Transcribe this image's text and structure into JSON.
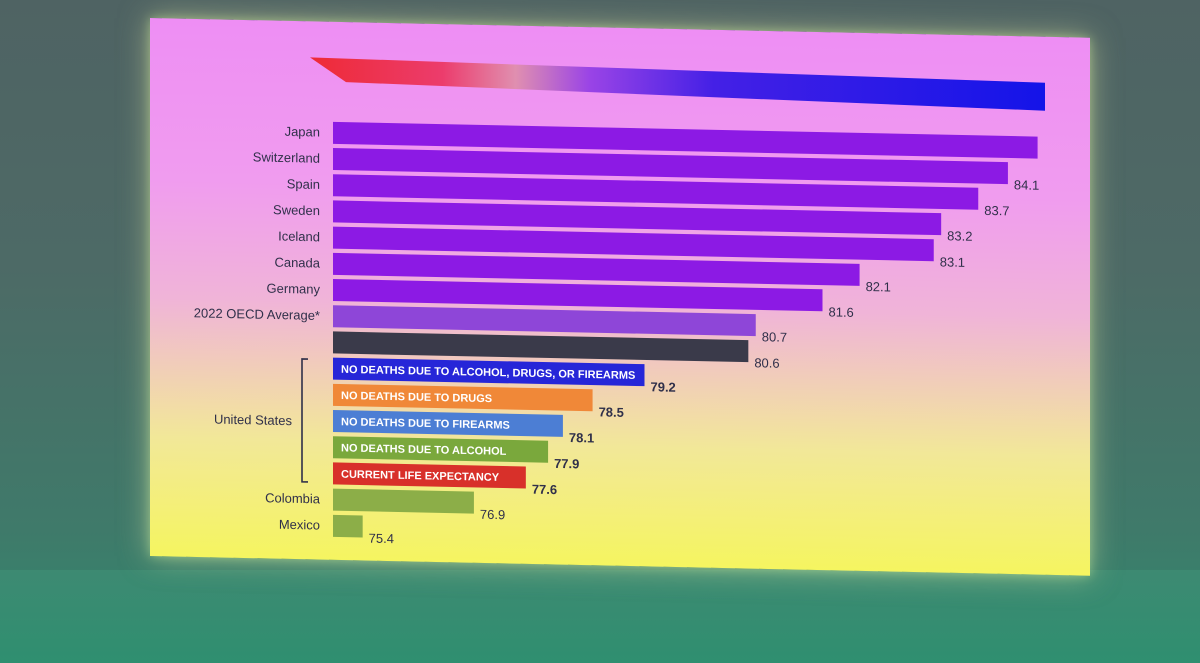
{
  "chart_data": {
    "type": "bar",
    "orientation": "horizontal",
    "categories": [
      "Japan",
      "Switzerland",
      "Spain",
      "Sweden",
      "Iceland",
      "Canada",
      "Germany",
      "2022 OECD Average*",
      "",
      "",
      "",
      "",
      "",
      "",
      "Colombia",
      "Mexico"
    ],
    "values": [
      84.5,
      84.1,
      83.7,
      83.2,
      83.1,
      82.1,
      81.6,
      80.7,
      80.6,
      79.2,
      78.5,
      78.1,
      77.9,
      77.6,
      76.9,
      75.4
    ],
    "value_labels": [
      "",
      "84.1",
      "83.7",
      "83.2",
      "83.1",
      "82.1",
      "81.6",
      "80.7",
      "80.6",
      "79.2",
      "78.5",
      "78.1",
      "77.9",
      "77.6",
      "76.9",
      "75.4"
    ],
    "bar_labels": [
      "",
      "",
      "",
      "",
      "",
      "",
      "",
      "",
      "",
      "NO DEATHS DUE TO ALCOHOL, DRUGS, OR FIREARMS",
      "NO DEATHS DUE TO DRUGS",
      "NO DEATHS DUE TO FIREARMS",
      "NO DEATHS DUE TO ALCOHOL",
      "CURRENT LIFE EXPECTANCY",
      "",
      ""
    ],
    "colors": [
      "#8c1ae4",
      "#8c1ae4",
      "#8c1ae4",
      "#8c1ae4",
      "#8c1ae4",
      "#8c1ae4",
      "#8c1ae4",
      "#8e46d8",
      "#3a3a4a",
      "#2626d8",
      "#f08838",
      "#4c7ed4",
      "#7aa83c",
      "#d8302a",
      "#8cae48",
      "#8cae48"
    ],
    "value_label_colors": [
      "#30304a",
      "#30304a",
      "#30304a",
      "#30304a",
      "#30304a",
      "#30304a",
      "#30304a",
      "#30304a",
      "#30304a",
      "#24248a",
      "#d87420",
      "#3a5fa8",
      "#5a7e28",
      "#c82a22",
      "#30304a",
      "#30304a"
    ],
    "bold_value_labels": [
      false,
      false,
      false,
      false,
      false,
      false,
      false,
      false,
      false,
      true,
      true,
      true,
      true,
      true,
      false,
      false
    ],
    "group_label": "United States",
    "group_range": [
      9,
      13
    ],
    "xlim": [
      75,
      84.6
    ],
    "title": "",
    "xlabel": "",
    "ylabel": "",
    "grid": false,
    "legend": "none"
  }
}
